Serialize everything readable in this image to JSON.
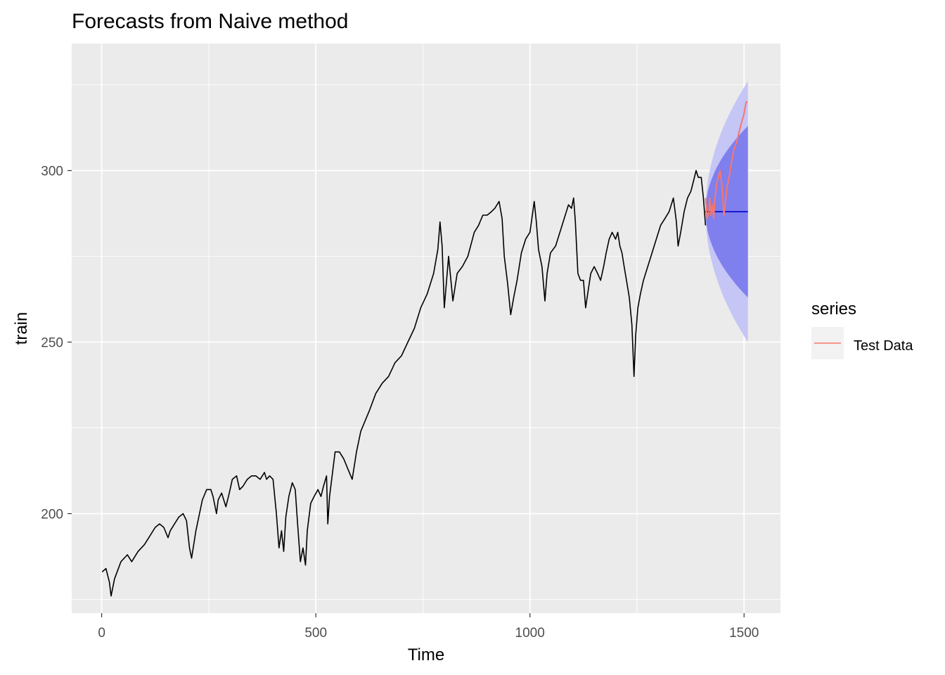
{
  "chart_data": {
    "type": "line",
    "title": "Forecasts from Naive method",
    "xlabel": "Time",
    "ylabel": "train",
    "xlim": [
      -70,
      1585
    ],
    "ylim": [
      171,
      337
    ],
    "x_ticks": [
      0,
      500,
      1000,
      1500
    ],
    "x_tick_labels": [
      "0",
      "500",
      "1000",
      "1500"
    ],
    "y_ticks": [
      200,
      250,
      300
    ],
    "y_tick_labels": [
      "200",
      "250",
      "300"
    ],
    "grid": true,
    "legend": {
      "title": "series",
      "position": "right",
      "entries": [
        {
          "label": "Test Data",
          "color": "#F8766D"
        }
      ]
    },
    "series": [
      {
        "role": "train",
        "color": "#000000",
        "points": [
          [
            1,
            183
          ],
          [
            10,
            184
          ],
          [
            18,
            180
          ],
          [
            22,
            176
          ],
          [
            30,
            181
          ],
          [
            45,
            186
          ],
          [
            60,
            188
          ],
          [
            70,
            186
          ],
          [
            85,
            189
          ],
          [
            100,
            191
          ],
          [
            110,
            193
          ],
          [
            125,
            196
          ],
          [
            135,
            197
          ],
          [
            145,
            196
          ],
          [
            155,
            193
          ],
          [
            160,
            195
          ],
          [
            170,
            197
          ],
          [
            180,
            199
          ],
          [
            190,
            200
          ],
          [
            198,
            198
          ],
          [
            205,
            190
          ],
          [
            210,
            187
          ],
          [
            220,
            195
          ],
          [
            235,
            204
          ],
          [
            245,
            207
          ],
          [
            255,
            207
          ],
          [
            260,
            205
          ],
          [
            268,
            200
          ],
          [
            272,
            204
          ],
          [
            280,
            206
          ],
          [
            290,
            202
          ],
          [
            298,
            206
          ],
          [
            305,
            210
          ],
          [
            315,
            211
          ],
          [
            322,
            207
          ],
          [
            330,
            208
          ],
          [
            340,
            210
          ],
          [
            350,
            211
          ],
          [
            360,
            211
          ],
          [
            370,
            210
          ],
          [
            380,
            212
          ],
          [
            385,
            210
          ],
          [
            392,
            211
          ],
          [
            400,
            210
          ],
          [
            408,
            200
          ],
          [
            414,
            190
          ],
          [
            420,
            195
          ],
          [
            425,
            189
          ],
          [
            430,
            199
          ],
          [
            437,
            205
          ],
          [
            445,
            209
          ],
          [
            452,
            207
          ],
          [
            458,
            196
          ],
          [
            464,
            186
          ],
          [
            470,
            190
          ],
          [
            476,
            185
          ],
          [
            480,
            195
          ],
          [
            488,
            203
          ],
          [
            496,
            205
          ],
          [
            505,
            207
          ],
          [
            512,
            205
          ],
          [
            518,
            208
          ],
          [
            525,
            211
          ],
          [
            528,
            197
          ],
          [
            532,
            205
          ],
          [
            545,
            218
          ],
          [
            555,
            218
          ],
          [
            565,
            216
          ],
          [
            575,
            213
          ],
          [
            585,
            210
          ],
          [
            595,
            218
          ],
          [
            605,
            224
          ],
          [
            615,
            227
          ],
          [
            625,
            230
          ],
          [
            640,
            235
          ],
          [
            655,
            238
          ],
          [
            670,
            240
          ],
          [
            685,
            244
          ],
          [
            700,
            246
          ],
          [
            715,
            250
          ],
          [
            730,
            254
          ],
          [
            745,
            260
          ],
          [
            760,
            264
          ],
          [
            775,
            270
          ],
          [
            785,
            277
          ],
          [
            790,
            285
          ],
          [
            795,
            278
          ],
          [
            800,
            260
          ],
          [
            810,
            275
          ],
          [
            820,
            262
          ],
          [
            830,
            270
          ],
          [
            842,
            272
          ],
          [
            855,
            275
          ],
          [
            870,
            282
          ],
          [
            880,
            284
          ],
          [
            890,
            287
          ],
          [
            900,
            287
          ],
          [
            910,
            288
          ],
          [
            918,
            289
          ],
          [
            928,
            291
          ],
          [
            935,
            286
          ],
          [
            940,
            275
          ],
          [
            948,
            267
          ],
          [
            955,
            258
          ],
          [
            962,
            263
          ],
          [
            970,
            268
          ],
          [
            980,
            276
          ],
          [
            990,
            280
          ],
          [
            1000,
            282
          ],
          [
            1010,
            291
          ],
          [
            1015,
            285
          ],
          [
            1020,
            277
          ],
          [
            1028,
            272
          ],
          [
            1035,
            262
          ],
          [
            1040,
            270
          ],
          [
            1048,
            276
          ],
          [
            1060,
            278
          ],
          [
            1070,
            282
          ],
          [
            1080,
            286
          ],
          [
            1090,
            290
          ],
          [
            1097,
            289
          ],
          [
            1102,
            292
          ],
          [
            1106,
            285
          ],
          [
            1112,
            270
          ],
          [
            1118,
            268
          ],
          [
            1125,
            268
          ],
          [
            1130,
            260
          ],
          [
            1136,
            265
          ],
          [
            1142,
            270
          ],
          [
            1150,
            272
          ],
          [
            1158,
            270
          ],
          [
            1165,
            268
          ],
          [
            1172,
            272
          ],
          [
            1178,
            276
          ],
          [
            1185,
            280
          ],
          [
            1192,
            282
          ],
          [
            1200,
            280
          ],
          [
            1205,
            282
          ],
          [
            1210,
            278
          ],
          [
            1215,
            276
          ],
          [
            1220,
            272
          ],
          [
            1228,
            266
          ],
          [
            1232,
            263
          ],
          [
            1238,
            255
          ],
          [
            1243,
            240
          ],
          [
            1247,
            252
          ],
          [
            1252,
            260
          ],
          [
            1258,
            264
          ],
          [
            1265,
            268
          ],
          [
            1275,
            272
          ],
          [
            1285,
            276
          ],
          [
            1295,
            280
          ],
          [
            1305,
            284
          ],
          [
            1315,
            286
          ],
          [
            1325,
            288
          ],
          [
            1335,
            292
          ],
          [
            1342,
            285
          ],
          [
            1346,
            278
          ],
          [
            1352,
            282
          ],
          [
            1360,
            288
          ],
          [
            1368,
            292
          ],
          [
            1376,
            294
          ],
          [
            1382,
            297
          ],
          [
            1388,
            300
          ],
          [
            1393,
            298
          ],
          [
            1400,
            298
          ],
          [
            1405,
            292
          ],
          [
            1410,
            284
          ]
        ]
      },
      {
        "name": "Test Data",
        "role": "test",
        "color": "#F8766D",
        "points": [
          [
            1410,
            292
          ],
          [
            1414,
            286
          ],
          [
            1418,
            288
          ],
          [
            1420,
            292
          ],
          [
            1423,
            287
          ],
          [
            1426,
            290
          ],
          [
            1429,
            286
          ],
          [
            1432,
            292
          ],
          [
            1436,
            296
          ],
          [
            1440,
            298
          ],
          [
            1444,
            300
          ],
          [
            1448,
            296
          ],
          [
            1451,
            291
          ],
          [
            1453,
            287
          ],
          [
            1456,
            290
          ],
          [
            1460,
            295
          ],
          [
            1465,
            298
          ],
          [
            1470,
            302
          ],
          [
            1476,
            306
          ],
          [
            1482,
            308
          ],
          [
            1488,
            311
          ],
          [
            1494,
            314
          ],
          [
            1499,
            316
          ],
          [
            1502,
            318
          ],
          [
            1505,
            320
          ],
          [
            1508,
            320
          ]
        ]
      }
    ],
    "forecast": {
      "point": 288,
      "color": "#0000CC",
      "start": 1410,
      "end": 1509,
      "band_80": {
        "upper_end": 313,
        "lower_end": 263,
        "color": "#7F7FEE"
      },
      "band_95": {
        "upper_end": 326,
        "lower_end": 250,
        "color": "#C5C5F6"
      }
    },
    "colors": {
      "panel_bg": "#EBEBEB",
      "grid": "#FFFFFF",
      "legend_key_bg": "#F2F2F2"
    }
  }
}
